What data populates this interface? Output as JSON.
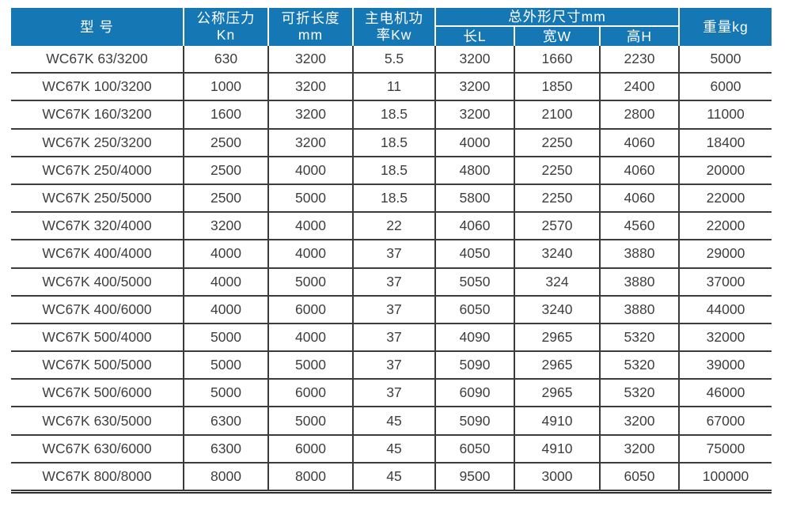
{
  "colors": {
    "header_bg": "#1677b5",
    "header_text": "#ffffff",
    "body_text": "#3e3e3e",
    "grid_line": "#3b3b3b"
  },
  "table": {
    "header": {
      "model": "型 号",
      "pressure_line1": "公称压力",
      "pressure_line2": "Kn",
      "length_line1": "可折长度",
      "length_line2": "mm",
      "power_line1": "主电机功",
      "power_line2": "率Kw",
      "dimensions_group": "总外形尺寸mm",
      "dim_l": "长L",
      "dim_w": "宽W",
      "dim_h": "高H",
      "weight": "重量kg"
    },
    "column_keys": [
      "model",
      "pressure-kn",
      "fold-length-mm",
      "motor-power-kw",
      "dim-length-l",
      "dim-width-w",
      "dim-height-h",
      "weight-kg"
    ],
    "rows": [
      [
        "WC67K 63/3200",
        "630",
        "3200",
        "5.5",
        "3200",
        "1660",
        "2230",
        "5000"
      ],
      [
        "WC67K 100/3200",
        "1000",
        "3200",
        "11",
        "3200",
        "1850",
        "2400",
        "6000"
      ],
      [
        "WC67K 160/3200",
        "1600",
        "3200",
        "18.5",
        "3200",
        "2100",
        "2800",
        "11000"
      ],
      [
        "WC67K 250/3200",
        "2500",
        "3200",
        "18.5",
        "4000",
        "2250",
        "4060",
        "18400"
      ],
      [
        "WC67K 250/4000",
        "2500",
        "4000",
        "18.5",
        "4800",
        "2250",
        "4060",
        "20000"
      ],
      [
        "WC67K 250/5000",
        "2500",
        "5000",
        "18.5",
        "5800",
        "2250",
        "4060",
        "22000"
      ],
      [
        "WC67K 320/4000",
        "3200",
        "4000",
        "22",
        "4060",
        "2570",
        "4560",
        "22000"
      ],
      [
        "WC67K 400/4000",
        "4000",
        "4000",
        "37",
        "4050",
        "3240",
        "3880",
        "29000"
      ],
      [
        "WC67K 400/5000",
        "4000",
        "5000",
        "37",
        "5050",
        "324",
        "3880",
        "37000"
      ],
      [
        "WC67K 400/6000",
        "4000",
        "6000",
        "37",
        "6050",
        "3240",
        "3880",
        "44000"
      ],
      [
        "WC67K 500/4000",
        "5000",
        "4000",
        "37",
        "4090",
        "2965",
        "5320",
        "32000"
      ],
      [
        "WC67K 500/5000",
        "5000",
        "5000",
        "37",
        "5090",
        "2965",
        "5320",
        "39000"
      ],
      [
        "WC67K 500/6000",
        "5000",
        "6000",
        "37",
        "6090",
        "2965",
        "5320",
        "46000"
      ],
      [
        "WC67K 630/5000",
        "6300",
        "5000",
        "45",
        "5090",
        "4910",
        "3200",
        "67000"
      ],
      [
        "WC67K 630/6000",
        "6300",
        "6000",
        "45",
        "6050",
        "4910",
        "3200",
        "75000"
      ],
      [
        "WC67K 800/8000",
        "8000",
        "8000",
        "45",
        "9500",
        "3000",
        "6050",
        "100000"
      ]
    ]
  }
}
